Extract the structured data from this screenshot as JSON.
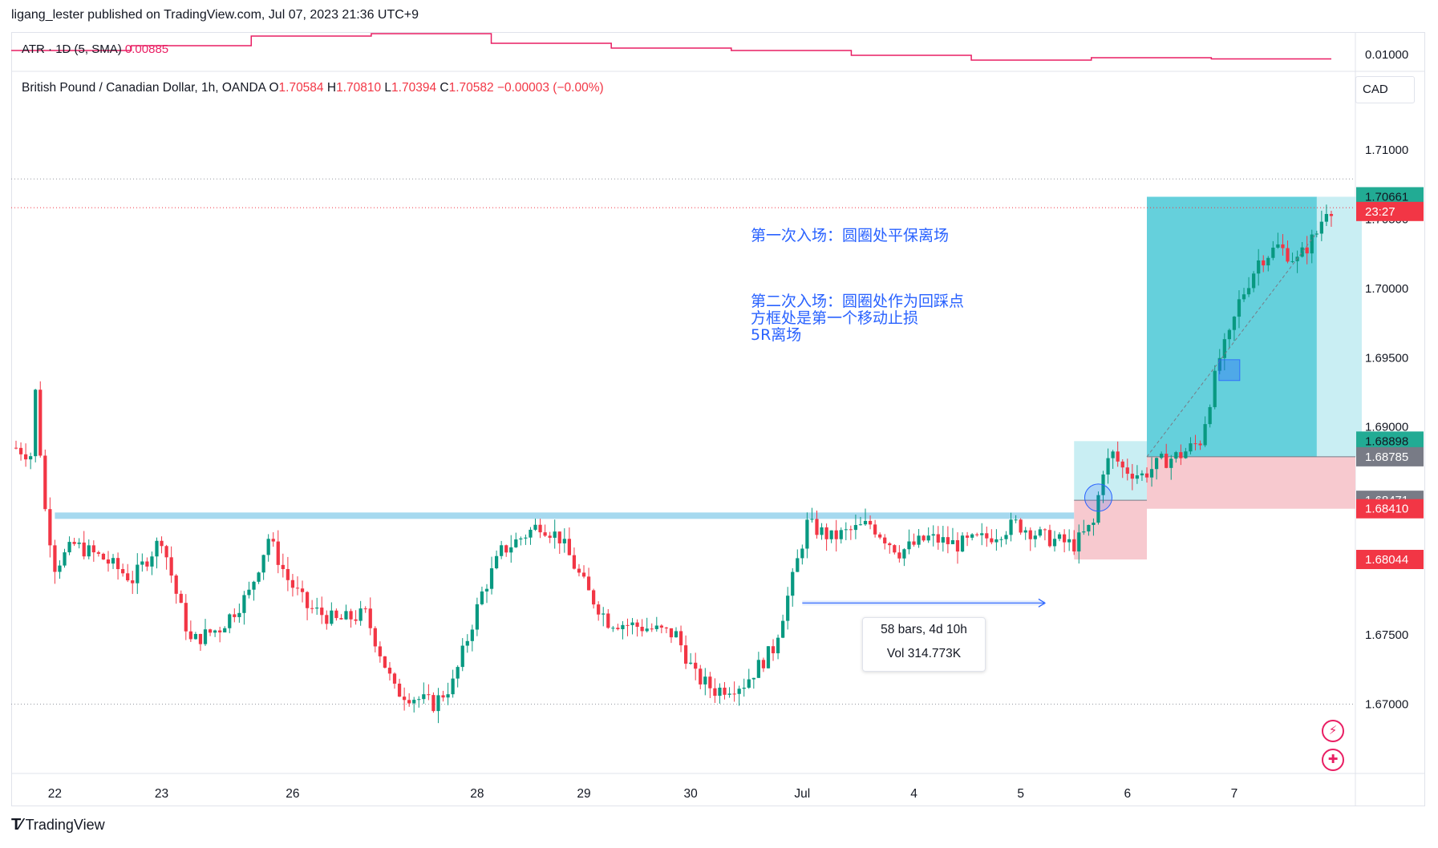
{
  "header": {
    "publisher_line": "ligang_lester published on TradingView.com, Jul 07, 2023 21:36 UTC+9"
  },
  "atr_legend": {
    "label": "ATR · 1D (5, SMA)",
    "value": "0.00885"
  },
  "atr_axis_label": "0.01000",
  "symbol_legend": {
    "name": "British Pound / Canadian Dollar, 1h, OANDA",
    "o_label": "O",
    "o_value": "1.70584",
    "h_label": "H",
    "h_value": "1.70810",
    "l_label": "L",
    "l_value": "1.70394",
    "c_label": "C",
    "c_value": "1.70582",
    "change": "−0.00003 (−0.00%)"
  },
  "currency": "CAD",
  "notes": {
    "line1": "第一次入场：圆圈处平保离场",
    "line2": "第二次入场：圆圈处作为回踩点",
    "line3": "方框处是第一个移动止损",
    "line4": "5R离场"
  },
  "measure": {
    "bars": "58 bars, 4d 10h",
    "vol": "Vol 314.773K"
  },
  "price_tags": [
    {
      "text": "1.70661",
      "color": "#22ab94",
      "text_color": "#131722",
      "price": 1.70661
    },
    {
      "text": "23:27",
      "color": "#f23645",
      "text_color": "#ffffff",
      "price": 1.70555
    },
    {
      "text": "1.68898",
      "color": "#22ab94",
      "text_color": "#131722",
      "price": 1.68898
    },
    {
      "text": "1.68785",
      "color": "#787b86",
      "text_color": "#ffffff",
      "price": 1.68785
    },
    {
      "text": "1.68471",
      "color": "#787b86",
      "text_color": "#ffffff",
      "price": 1.68471
    },
    {
      "text": "1.68410",
      "color": "#f23645",
      "text_color": "#ffffff",
      "price": 1.6841
    },
    {
      "text": "1.68044",
      "color": "#f23645",
      "text_color": "#ffffff",
      "price": 1.68044
    }
  ],
  "footer": {
    "brand": "TradingView"
  },
  "colors": {
    "up": "#089981",
    "down": "#f23645",
    "atr": "#e91e63",
    "zone_blue": "#a6d9ef",
    "profit": "#43c6d4",
    "loss": "#f7c9cf"
  },
  "chart_data": {
    "type": "candlestick",
    "symbol": "British Pound / Canadian Dollar",
    "interval": "1h",
    "y_axis": {
      "min": 1.665,
      "max": 1.713,
      "ticks": [
        "1.71000",
        "1.70500",
        "1.70000",
        "1.69500",
        "1.69000",
        "1.67500",
        "1.67000"
      ],
      "tick_values": [
        1.71,
        1.705,
        1.7,
        1.695,
        1.69,
        1.675,
        1.67
      ]
    },
    "x_axis": {
      "labels": [
        "22",
        "23",
        "26",
        "28",
        "29",
        "30",
        "Jul",
        "4",
        "5",
        "6",
        "7"
      ],
      "label_bar_index": [
        8,
        30,
        57,
        95,
        117,
        139,
        162,
        185,
        207,
        229,
        251
      ]
    },
    "bar_count": 272,
    "atr": {
      "values": [
        0.0092,
        0.0094,
        0.0098,
        0.0099,
        0.0095,
        0.0093,
        0.0092,
        0.009,
        0.0088,
        0.0089,
        0.00885
      ]
    },
    "price_path": {
      "keyframes": [
        [
          0,
          1.6885
        ],
        [
          3,
          1.688
        ],
        [
          4,
          1.6925
        ],
        [
          6,
          1.684
        ],
        [
          8,
          1.68
        ],
        [
          12,
          1.6815
        ],
        [
          18,
          1.6805
        ],
        [
          24,
          1.679
        ],
        [
          30,
          1.682
        ],
        [
          33,
          1.678
        ],
        [
          36,
          1.6745
        ],
        [
          42,
          1.6755
        ],
        [
          48,
          1.678
        ],
        [
          52,
          1.682
        ],
        [
          56,
          1.679
        ],
        [
          60,
          1.677
        ],
        [
          66,
          1.676
        ],
        [
          72,
          1.6765
        ],
        [
          78,
          1.671
        ],
        [
          82,
          1.6705
        ],
        [
          86,
          1.67
        ],
        [
          90,
          1.6715
        ],
        [
          96,
          1.678
        ],
        [
          100,
          1.681
        ],
        [
          108,
          1.683
        ],
        [
          112,
          1.682
        ],
        [
          118,
          1.678
        ],
        [
          122,
          1.676
        ],
        [
          130,
          1.6755
        ],
        [
          136,
          1.675
        ],
        [
          140,
          1.672
        ],
        [
          144,
          1.671
        ],
        [
          150,
          1.6715
        ],
        [
          156,
          1.674
        ],
        [
          160,
          1.679
        ],
        [
          163,
          1.683
        ],
        [
          168,
          1.682
        ],
        [
          176,
          1.683
        ],
        [
          182,
          1.681
        ],
        [
          188,
          1.682
        ],
        [
          194,
          1.6815
        ],
        [
          200,
          1.682
        ],
        [
          206,
          1.683
        ],
        [
          212,
          1.682
        ],
        [
          218,
          1.6815
        ],
        [
          222,
          1.683
        ],
        [
          224,
          1.687
        ],
        [
          226,
          1.688
        ],
        [
          228,
          1.687
        ],
        [
          232,
          1.6865
        ],
        [
          236,
          1.6875
        ],
        [
          240,
          1.688
        ],
        [
          244,
          1.689
        ],
        [
          248,
          1.695
        ],
        [
          250,
          1.6965
        ],
        [
          252,
          1.699
        ],
        [
          256,
          1.702
        ],
        [
          260,
          1.703
        ],
        [
          264,
          1.702
        ],
        [
          268,
          1.704
        ],
        [
          270,
          1.7058
        ],
        [
          271,
          1.7058
        ]
      ]
    },
    "annotations": {
      "support_band": {
        "start_bar": 8,
        "end_bar": 218,
        "price": 1.6836
      },
      "trade1": {
        "start_bar": 218,
        "end_bar": 233,
        "entry": 1.68471,
        "target": 1.68898,
        "stop": 1.68044
      },
      "trade2": {
        "start_bar": 233,
        "end_bar": 271,
        "entry": 1.68785,
        "target": 1.70661,
        "stop": 1.6841
      },
      "measure_arrow": {
        "start_bar": 162,
        "end_bar": 212,
        "price": 1.6773
      },
      "circle": {
        "bar": 223,
        "price": 1.6849
      },
      "square": {
        "bar": 250,
        "price": 1.6941
      }
    }
  }
}
